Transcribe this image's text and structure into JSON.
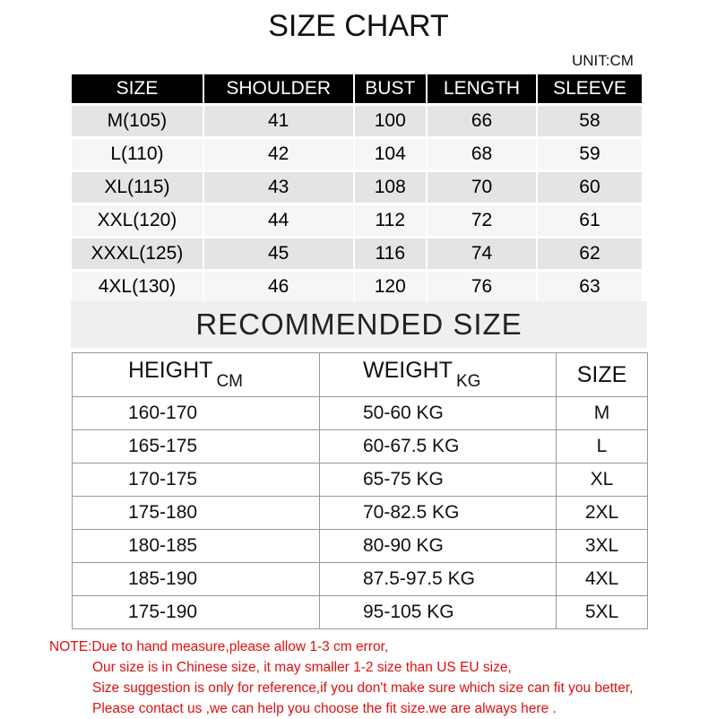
{
  "title": "SIZE CHART",
  "unit": "UNIT:CM",
  "size_table": {
    "headers": [
      "SIZE",
      "SHOULDER",
      "BUST",
      "LENGTH",
      "SLEEVE"
    ],
    "rows": [
      [
        "M(105)",
        "41",
        "100",
        "66",
        "58"
      ],
      [
        "L(110)",
        "42",
        "104",
        "68",
        "59"
      ],
      [
        "XL(115)",
        "43",
        "108",
        "70",
        "60"
      ],
      [
        "XXL(120)",
        "44",
        "112",
        "72",
        "61"
      ],
      [
        "XXXL(125)",
        "45",
        "116",
        "74",
        "62"
      ],
      [
        "4XL(130)",
        "46",
        "120",
        "76",
        "63"
      ]
    ]
  },
  "recommended": {
    "title": "RECOMMENDED SIZE",
    "headers": [
      {
        "label": "HEIGHT",
        "unit": "CM"
      },
      {
        "label": "WEIGHT",
        "unit": "KG"
      },
      {
        "label": "SIZE",
        "unit": ""
      }
    ],
    "rows": [
      [
        "160-170",
        "50-60 KG",
        "M"
      ],
      [
        "165-175",
        "60-67.5 KG",
        "L"
      ],
      [
        "170-175",
        "65-75 KG",
        "XL"
      ],
      [
        "175-180",
        "70-82.5 KG",
        "2XL"
      ],
      [
        "180-185",
        "80-90 KG",
        "3XL"
      ],
      [
        "185-190",
        "87.5-97.5 KG",
        "4XL"
      ],
      [
        "175-190",
        "95-105 KG",
        "5XL"
      ]
    ]
  },
  "notes": [
    "NOTE:Due to hand measure,please allow 1-3 cm error,",
    "Our size is in Chinese size, it may smaller 1-2 size than US EU size,",
    "Size suggestion is only for reference,if you don't make sure which size can fit you better,",
    "Please contact  us ,we can help you choose the fit size.we are  always here ."
  ],
  "colors": {
    "header_bg": "#000000",
    "note_text": "#e01010"
  }
}
